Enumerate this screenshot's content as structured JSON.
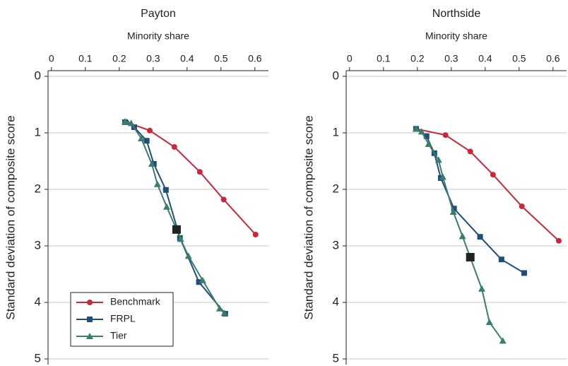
{
  "chart_data": [
    {
      "type": "line",
      "title": "Payton",
      "x_label": "Minority share",
      "y_label": "Standard deviation of composite score",
      "xlim": [
        -0.01,
        0.64
      ],
      "ylim": [
        -0.1,
        5.1
      ],
      "y_inverted": true,
      "x_axis_position": "top",
      "xticks": [
        0,
        0.1,
        0.2,
        0.3,
        0.4,
        0.5,
        0.6
      ],
      "yticks": [
        0,
        1,
        2,
        3,
        4,
        5
      ],
      "grid": true,
      "legend": "lower left",
      "series": [
        {
          "name": "Benchmark",
          "color": "#c8283c",
          "marker": "circle",
          "x": [
            0.221,
            0.29,
            0.3625,
            0.4375,
            0.508,
            0.602
          ],
          "values": [
            0.81,
            0.96,
            1.25,
            1.69,
            2.18,
            2.8
          ]
        },
        {
          "name": "FRPL",
          "color": "#1f4e79",
          "marker": "square",
          "x": [
            0.217,
            0.244,
            0.281,
            0.302,
            0.3375,
            0.379,
            0.435,
            0.5125
          ],
          "values": [
            0.81,
            0.9,
            1.14,
            1.55,
            2.01,
            2.86,
            3.64,
            4.2
          ]
        },
        {
          "name": "Tier",
          "color": "#3a7d6e",
          "marker": "triangle",
          "x": [
            0.217,
            0.235,
            0.265,
            0.296,
            0.3125,
            0.34,
            0.381,
            0.404,
            0.446,
            0.496,
            0.51
          ],
          "values": [
            0.8,
            0.83,
            1.1,
            1.55,
            1.91,
            2.31,
            2.88,
            3.18,
            3.61,
            4.11,
            4.19
          ]
        }
      ],
      "highlight": {
        "color": "#222222",
        "x": [
          0.369
        ],
        "values": [
          2.71
        ]
      }
    },
    {
      "type": "line",
      "title": "Northside",
      "x_label": "Minority share",
      "y_label": "Standard deviation of composite score",
      "xlim": [
        -0.01,
        0.64
      ],
      "ylim": [
        -0.1,
        5.1
      ],
      "y_inverted": true,
      "x_axis_position": "top",
      "xticks": [
        0,
        0.1,
        0.2,
        0.3,
        0.4,
        0.5,
        0.6
      ],
      "yticks": [
        0,
        1,
        2,
        3,
        4,
        5
      ],
      "grid": true,
      "series": [
        {
          "color": "#c8283c",
          "marker": "circle",
          "x": [
            0.196,
            0.283,
            0.356,
            0.423,
            0.508,
            0.617
          ],
          "values": [
            0.93,
            1.04,
            1.33,
            1.74,
            2.3,
            2.91
          ]
        },
        {
          "color": "#1f4e79",
          "marker": "square",
          "x": [
            0.196,
            0.227,
            0.25,
            0.269,
            0.308,
            0.385,
            0.448,
            0.515
          ],
          "values": [
            0.93,
            1.06,
            1.36,
            1.8,
            2.34,
            2.84,
            3.24,
            3.48
          ]
        },
        {
          "color": "#3a7d6e",
          "marker": "triangle",
          "x": [
            0.196,
            0.2125,
            0.233,
            0.2625,
            0.275,
            0.306,
            0.333,
            0.39,
            0.4125,
            0.452
          ],
          "values": [
            0.93,
            0.98,
            1.2,
            1.48,
            1.78,
            2.4,
            2.83,
            3.76,
            4.35,
            4.68
          ]
        }
      ],
      "highlight": {
        "color": "#222222",
        "x": [
          0.356
        ],
        "values": [
          3.2
        ]
      }
    }
  ]
}
